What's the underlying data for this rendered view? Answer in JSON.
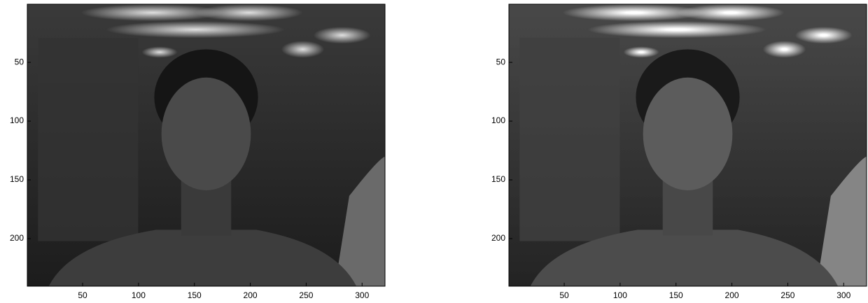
{
  "chart_data": [
    {
      "type": "image",
      "xlim": [
        0.5,
        320.5
      ],
      "ylim": [
        0.5,
        240.5
      ],
      "y_reversed": true,
      "xticks": [
        50,
        100,
        150,
        200,
        250,
        300
      ],
      "yticks": [
        50,
        100,
        150,
        200
      ]
    },
    {
      "type": "image",
      "xlim": [
        0.5,
        320.5
      ],
      "ylim": [
        0.5,
        240.5
      ],
      "y_reversed": true,
      "xticks": [
        50,
        100,
        150,
        200,
        250,
        300
      ],
      "yticks": [
        50,
        100,
        150,
        200
      ]
    }
  ]
}
